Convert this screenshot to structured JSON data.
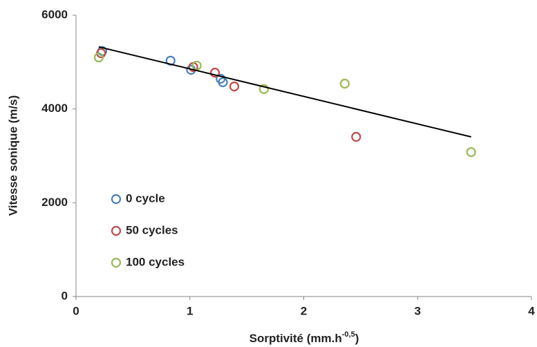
{
  "chart_data": {
    "type": "scatter",
    "x_label": {
      "text": "Sorptivité (mm.h",
      "sup": "-0,5",
      "end": ")"
    },
    "y_label": "Vitesse sonique (m/s)",
    "xlim": [
      0,
      4
    ],
    "xticks": [
      0,
      1,
      2,
      3,
      4
    ],
    "ylim": [
      0,
      6000
    ],
    "yticks": [
      0,
      2000,
      4000,
      6000
    ],
    "legend": "lower-left",
    "series": [
      {
        "name": "0 cycle",
        "color": "#4a7ebb",
        "x": [
          0.23,
          0.83,
          1.01,
          1.27,
          1.29
        ],
        "values": [
          5235,
          5030,
          4835,
          4645,
          4570
        ]
      },
      {
        "name": "50 cycles",
        "color": "#be4b48",
        "x": [
          0.22,
          1.03,
          1.22,
          1.39,
          2.46
        ],
        "values": [
          5190,
          4895,
          4775,
          4480,
          3405
        ]
      },
      {
        "name": "100 cycles",
        "color": "#98b954",
        "x": [
          0.2,
          1.06,
          1.65,
          2.36,
          3.47
        ],
        "values": [
          5100,
          4925,
          4425,
          4540,
          3080
        ]
      }
    ],
    "trendline": {
      "color": "#000000",
      "x": [
        0.2,
        3.47
      ],
      "values": [
        5325,
        3405
      ]
    }
  }
}
